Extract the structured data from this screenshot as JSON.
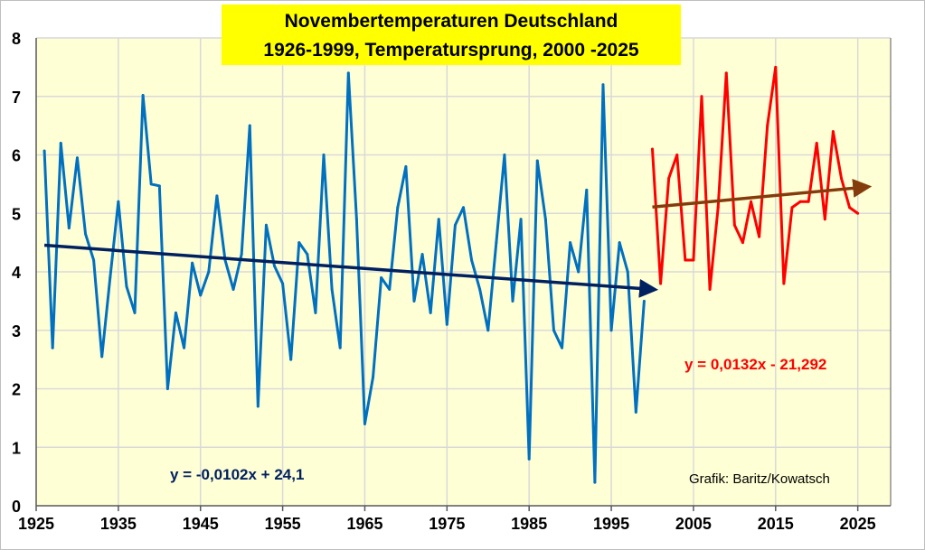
{
  "chart_data": {
    "type": "line",
    "title_lines": [
      "Novembertemperaturen Deutschland",
      "1926-1999, Temperatursprung, 2000 -2025"
    ],
    "xlabel": "",
    "ylabel": "",
    "xlim": [
      1925,
      2029
    ],
    "ylim": [
      0,
      8
    ],
    "x_ticks": [
      1925,
      1935,
      1945,
      1955,
      1965,
      1975,
      1985,
      1995,
      2005,
      2015,
      2025
    ],
    "y_ticks": [
      0,
      1,
      2,
      3,
      4,
      5,
      6,
      7,
      8
    ],
    "grid": true,
    "background_color": "#FFFFD5",
    "title_background": "#FFFF00",
    "series": [
      {
        "color": "#0070C0",
        "x_start": 1926,
        "x_end": 1999,
        "values": [
          6.07,
          2.7,
          6.2,
          4.75,
          5.95,
          4.65,
          4.2,
          2.55,
          3.9,
          5.2,
          3.75,
          3.3,
          7.02,
          5.5,
          5.47,
          2.0,
          3.3,
          2.7,
          4.15,
          3.6,
          4.0,
          5.3,
          4.2,
          3.7,
          4.3,
          6.5,
          1.7,
          4.8,
          4.1,
          3.8,
          2.5,
          4.5,
          4.3,
          3.3,
          6.0,
          3.7,
          2.7,
          7.4,
          4.9,
          1.4,
          2.2,
          3.9,
          3.7,
          5.1,
          5.8,
          3.5,
          4.3,
          3.3,
          4.9,
          3.1,
          4.8,
          5.1,
          4.2,
          3.7,
          3.0,
          4.5,
          6.0,
          3.5,
          4.9,
          0.8,
          5.9,
          4.9,
          3.0,
          2.7,
          4.5,
          4.0,
          5.4,
          0.4,
          7.2,
          3.0,
          4.5,
          4.0,
          1.6,
          3.5
        ]
      },
      {
        "color": "#FF0000",
        "x_start": 2000,
        "x_end": 2025,
        "values": [
          6.1,
          3.8,
          5.6,
          6.0,
          4.2,
          4.2,
          7.0,
          3.7,
          5.1,
          7.4,
          4.8,
          4.5,
          5.2,
          4.6,
          6.5,
          7.5,
          3.8,
          5.1,
          5.2,
          5.2,
          6.2,
          4.9,
          6.4,
          5.6,
          5.1,
          5.0
        ]
      }
    ],
    "trendlines": [
      {
        "slope": -0.0102,
        "intercept": 24.1,
        "x_range": [
          1926,
          1999
        ],
        "color": "#002060",
        "label": "y = -0,0102x + 24,1"
      },
      {
        "slope": 0.0132,
        "intercept": -21.292,
        "x_range": [
          2000,
          2025
        ],
        "color": "#843C0C",
        "label": "y = 0,0132x - 21,292"
      }
    ],
    "annotations": {
      "credit": "Grafik: Baritz/Kowatsch"
    }
  }
}
